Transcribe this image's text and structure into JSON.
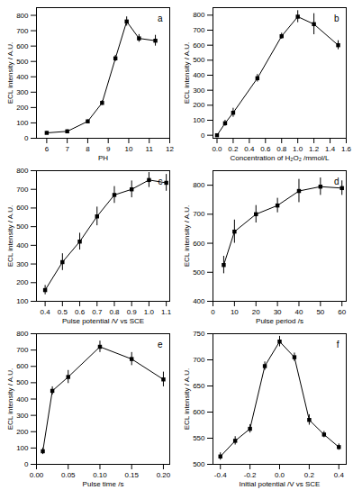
{
  "chart_data": [
    {
      "type": "line",
      "annotation": "a",
      "x_label": "PH",
      "y_label": "ECL intensity / A.U.",
      "color": "#000000",
      "marker": "square",
      "x": [
        6,
        7,
        8,
        8.7,
        9.35,
        9.9,
        10.5,
        11.3
      ],
      "values": [
        35,
        45,
        110,
        230,
        520,
        760,
        650,
        635
      ],
      "errors": [
        10,
        10,
        10,
        15,
        20,
        30,
        25,
        35
      ],
      "xlim": [
        5.5,
        12
      ],
      "xticks": [
        6,
        7,
        8,
        9,
        10,
        11,
        12
      ],
      "ylim": [
        0,
        850
      ],
      "yticks": [
        0,
        100,
        200,
        300,
        400,
        500,
        600,
        700,
        800
      ]
    },
    {
      "type": "line",
      "annotation": "b",
      "x_label": "Concentration of H₂O₂ /mmol/L",
      "y_label": "ECL intensity / A.U.",
      "color": "#000000",
      "marker": "square",
      "x": [
        0,
        0.1,
        0.2,
        0.5,
        0.8,
        1.0,
        1.2,
        1.5
      ],
      "values": [
        0,
        80,
        150,
        380,
        660,
        790,
        740,
        600
      ],
      "errors": [
        5,
        20,
        30,
        25,
        20,
        40,
        70,
        30
      ],
      "xlim": [
        -0.05,
        1.6
      ],
      "xticks": [
        {
          "value": 0,
          "label": "0.0"
        },
        {
          "value": 0.2,
          "label": "0.2"
        },
        {
          "value": 0.4,
          "label": "0.4"
        },
        {
          "value": 0.6,
          "label": "0.6"
        },
        {
          "value": 0.8,
          "label": "0.8"
        },
        {
          "value": 1,
          "label": "1.0"
        },
        {
          "value": 1.2,
          "label": "1.2"
        },
        {
          "value": 1.4,
          "label": "1.4"
        },
        {
          "value": 1.6,
          "label": "1.6"
        }
      ],
      "ylim": [
        -20,
        850
      ],
      "yticks": [
        0,
        100,
        200,
        300,
        400,
        500,
        600,
        700,
        800
      ]
    },
    {
      "type": "line",
      "annotation": "c",
      "x_label": "Pulse potential /V vs SCE",
      "y_label": "ECL intensity / A.U.",
      "color": "#000000",
      "marker": "square",
      "x": [
        0.4,
        0.5,
        0.6,
        0.7,
        0.8,
        0.9,
        1.0,
        1.1
      ],
      "values": [
        160,
        310,
        420,
        555,
        670,
        700,
        750,
        735
      ],
      "errors": [
        25,
        45,
        45,
        50,
        45,
        45,
        40,
        45
      ],
      "xlim": [
        0.35,
        1.12
      ],
      "xticks": [
        0.4,
        0.5,
        0.6,
        0.7,
        0.8,
        0.9,
        {
          "value": 1,
          "label": "1.0"
        },
        1.1
      ],
      "ylim": [
        100,
        800
      ],
      "yticks": [
        100,
        200,
        300,
        400,
        500,
        600,
        700,
        800
      ]
    },
    {
      "type": "line",
      "annotation": "d",
      "x_label": "Pulse period /s",
      "y_label": "ECL intensity / A.U.",
      "color": "#000000",
      "marker": "square",
      "x": [
        5,
        10,
        20,
        30,
        40,
        50,
        60
      ],
      "values": [
        525,
        640,
        700,
        730,
        780,
        795,
        790
      ],
      "errors": [
        30,
        40,
        30,
        25,
        40,
        30,
        25
      ],
      "xlim": [
        0,
        62
      ],
      "xticks": [
        0,
        10,
        20,
        30,
        40,
        50,
        60
      ],
      "ylim": [
        400,
        850
      ],
      "yticks": [
        400,
        500,
        600,
        700,
        800
      ]
    },
    {
      "type": "line",
      "annotation": "e",
      "x_label": "Pulse time /s",
      "y_label": "ECL intensity / A.U.",
      "color": "#000000",
      "marker": "square",
      "x": [
        0.01,
        0.025,
        0.05,
        0.1,
        0.15,
        0.2
      ],
      "values": [
        80,
        450,
        535,
        720,
        645,
        520
      ],
      "errors": [
        20,
        25,
        40,
        35,
        40,
        45
      ],
      "xlim": [
        0,
        0.21
      ],
      "xticks": [
        {
          "value": 0,
          "label": "0.00"
        },
        {
          "value": 0.05,
          "label": "0.05"
        },
        {
          "value": 0.1,
          "label": "0.10"
        },
        {
          "value": 0.15,
          "label": "0.15"
        },
        {
          "value": 0.2,
          "label": "0.20"
        }
      ],
      "ylim": [
        0,
        800
      ],
      "yticks": [
        0,
        100,
        200,
        300,
        400,
        500,
        600,
        700,
        800
      ]
    },
    {
      "type": "line",
      "annotation": "f",
      "x_label": "Initial potential /V vs SCE",
      "y_label": "ECL intensity / A.U.",
      "color": "#000000",
      "marker": "square",
      "x": [
        -0.4,
        -0.3,
        -0.2,
        -0.1,
        0,
        0.1,
        0.2,
        0.3,
        0.4
      ],
      "values": [
        515,
        545,
        568,
        688,
        735,
        705,
        585,
        557,
        533
      ],
      "errors": [
        7,
        8,
        8,
        8,
        10,
        8,
        10,
        6,
        6
      ],
      "xlim": [
        -0.45,
        0.45
      ],
      "xticks": [
        -0.4,
        -0.2,
        {
          "value": 0,
          "label": "0.0"
        },
        0.2,
        0.4
      ],
      "ylim": [
        500,
        750
      ],
      "yticks": [
        500,
        550,
        600,
        650,
        700,
        750
      ]
    }
  ]
}
